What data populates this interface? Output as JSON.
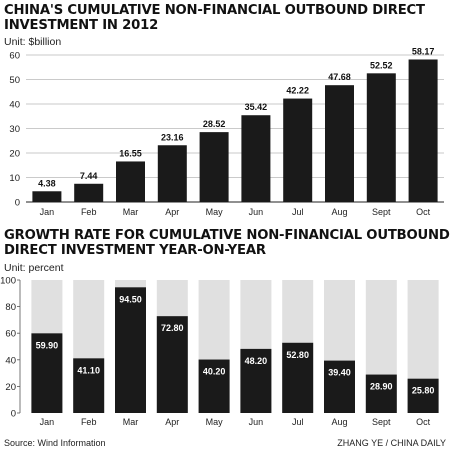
{
  "chart_data": [
    {
      "type": "bar",
      "title": "CHINA'S CUMULATIVE NON-FINANCIAL OUTBOUND DIRECT INVESTMENT IN 2012",
      "title_lines": [
        "CHINA'S CUMULATIVE NON-FINANCIAL OUTBOUND DIRECT",
        "INVESTMENT IN 2012"
      ],
      "unit": "Unit: $billion",
      "categories": [
        "Jan",
        "Feb",
        "Mar",
        "Apr",
        "May",
        "Jun",
        "Jul",
        "Aug",
        "Sept",
        "Oct"
      ],
      "values": [
        4.38,
        7.44,
        16.55,
        23.16,
        28.52,
        35.42,
        42.22,
        47.68,
        52.52,
        58.17
      ],
      "value_labels": [
        "4.38",
        "7.44",
        "16.55",
        "23.16",
        "28.52",
        "35.42",
        "42.22",
        "47.68",
        "52.52",
        "58.17"
      ],
      "ylim": [
        0,
        60
      ],
      "yticks": [
        0,
        10,
        20,
        30,
        40,
        50,
        60
      ],
      "grid": true,
      "colors": {
        "bar": "#1a1a1a",
        "grid": "#b8b8b8",
        "label": "#111111"
      }
    },
    {
      "type": "bar",
      "title": "GROWTH RATE FOR CUMULATIVE NON-FINANCIAL OUTBOUND DIRECT INVESTMENT YEAR-ON-YEAR",
      "title_lines": [
        "GROWTH RATE FOR CUMULATIVE NON-FINANCIAL OUTBOUND",
        "DIRECT INVESTMENT YEAR-ON-YEAR"
      ],
      "unit": "Unit: percent",
      "categories": [
        "Jan",
        "Feb",
        "Mar",
        "Apr",
        "May",
        "Jun",
        "Jul",
        "Aug",
        "Sept",
        "Oct"
      ],
      "values": [
        59.9,
        41.1,
        94.5,
        72.8,
        40.2,
        48.2,
        52.8,
        39.4,
        28.9,
        25.8
      ],
      "value_labels": [
        "59.90",
        "41.10",
        "94.50",
        "72.80",
        "40.20",
        "48.20",
        "52.80",
        "39.40",
        "28.90",
        "25.80"
      ],
      "ylim": [
        0,
        100
      ],
      "yticks": [
        0,
        20,
        40,
        60,
        80,
        100
      ],
      "grid": false,
      "colors": {
        "bar": "#1a1a1a",
        "background_bar": "#e0e0e0",
        "axis": "#555555",
        "label": "#ffffff"
      }
    }
  ],
  "footer": {
    "source": "Source: Wind Information",
    "credit": "ZHANG YE / CHINA DAILY"
  }
}
